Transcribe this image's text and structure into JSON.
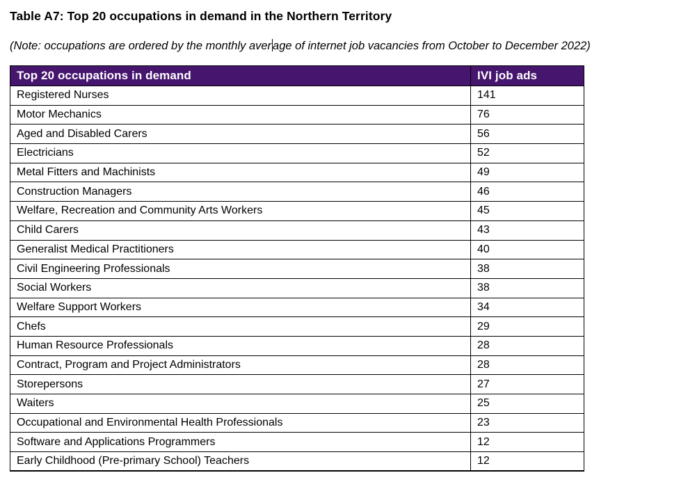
{
  "document": {
    "title": "Table A7: Top 20 occupations in demand in the Northern Territory",
    "note_part1": "(Note: occupations are ordered by the monthly aver",
    "note_part2": "age of internet job vacancies from October to December 2022)"
  },
  "colors": {
    "header_bg": "#46156E",
    "header_text": "#FFFFFF",
    "border": "#000000",
    "page_bg": "#FFFFFF"
  },
  "table": {
    "columns": [
      "Top 20 occupations in demand",
      "IVI job ads"
    ],
    "rows": [
      {
        "occupation": "Registered Nurses",
        "ivi_job_ads": "141"
      },
      {
        "occupation": "Motor Mechanics",
        "ivi_job_ads": "76"
      },
      {
        "occupation": "Aged and Disabled Carers",
        "ivi_job_ads": "56"
      },
      {
        "occupation": "Electricians",
        "ivi_job_ads": "52"
      },
      {
        "occupation": "Metal Fitters and Machinists",
        "ivi_job_ads": "49"
      },
      {
        "occupation": "Construction Managers",
        "ivi_job_ads": "46"
      },
      {
        "occupation": "Welfare, Recreation and Community Arts Workers",
        "ivi_job_ads": "45"
      },
      {
        "occupation": "Child Carers",
        "ivi_job_ads": "43"
      },
      {
        "occupation": "Generalist Medical Practitioners",
        "ivi_job_ads": "40"
      },
      {
        "occupation": "Civil Engineering Professionals",
        "ivi_job_ads": "38"
      },
      {
        "occupation": "Social Workers",
        "ivi_job_ads": "38"
      },
      {
        "occupation": "Welfare Support Workers",
        "ivi_job_ads": "34"
      },
      {
        "occupation": "Chefs",
        "ivi_job_ads": "29"
      },
      {
        "occupation": "Human Resource Professionals",
        "ivi_job_ads": "28"
      },
      {
        "occupation": "Contract, Program and Project Administrators",
        "ivi_job_ads": "28"
      },
      {
        "occupation": "Storepersons",
        "ivi_job_ads": "27"
      },
      {
        "occupation": "Waiters",
        "ivi_job_ads": "25"
      },
      {
        "occupation": "Occupational and Environmental Health Professionals",
        "ivi_job_ads": "23"
      },
      {
        "occupation": "Software and Applications Programmers",
        "ivi_job_ads": "12"
      },
      {
        "occupation": "Early Childhood (Pre-primary School) Teachers",
        "ivi_job_ads": "12"
      }
    ]
  }
}
